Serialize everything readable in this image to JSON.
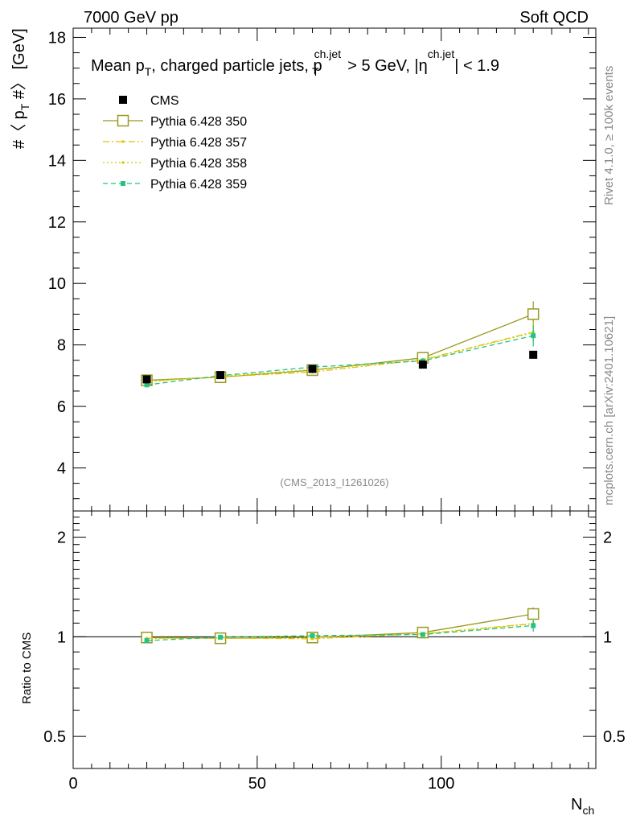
{
  "header": {
    "left": "7000 GeV pp",
    "right": "Soft QCD"
  },
  "side_text": {
    "rivet": "Rivet 4.1.0, ≥ 100k events",
    "mcplots": "mcplots.cern.ch [arXiv:2401.10621]"
  },
  "watermark": "(CMS_2013_I1261026)",
  "chart_data": {
    "type": "line",
    "title": {
      "main": "Mean p",
      "sub_T": "T",
      "part2": ", charged particle jets, p",
      "sup_chjet": "ch.jet",
      "part3": " > 5 GeV,  |η",
      "part4": "| < 1.9"
    },
    "ylabel": {
      "prefix": "#〈 p",
      "sub": "T",
      "suffix": " #〉 [GeV]"
    },
    "ratio_ylabel": "Ratio to CMS",
    "xlabel": {
      "main": "N",
      "sub": "ch"
    },
    "xlim": [
      0,
      142
    ],
    "ylim": [
      2.6,
      18.3
    ],
    "ratio_ylim": [
      0.4,
      2.4
    ],
    "x_ticks": [
      "0",
      "50",
      "100"
    ],
    "y_ticks": [
      "4",
      "6",
      "8",
      "10",
      "12",
      "14",
      "16",
      "18"
    ],
    "ratio_ticks": [
      "0.5",
      "1",
      "2"
    ],
    "legend_position": "top-left",
    "data": {
      "name": "CMS",
      "color": "#000000",
      "x": [
        20,
        40,
        65,
        95,
        125
      ],
      "y": [
        6.88,
        7.02,
        7.22,
        7.36,
        7.68
      ]
    },
    "series": [
      {
        "name": "Pythia 6.428 350",
        "color": "#999922",
        "dash": "solid",
        "marker": "open-square",
        "x": [
          20,
          40,
          65,
          95,
          125
        ],
        "y": [
          6.85,
          6.95,
          7.18,
          7.58,
          9.0
        ],
        "err": [
          0.04,
          0.04,
          0.05,
          0.06,
          0.42
        ],
        "ratio": [
          0.995,
          0.99,
          0.995,
          1.03,
          1.172
        ],
        "ratio_err": [
          0.006,
          0.006,
          0.007,
          0.008,
          0.055
        ]
      },
      {
        "name": "Pythia 6.428 357",
        "color": "#e6c000",
        "dash": "dashdot",
        "marker": "small-dot",
        "x": [
          20,
          40,
          65,
          95,
          125
        ],
        "y": [
          6.82,
          6.96,
          7.12,
          7.52,
          8.42
        ],
        "err": [
          0.04,
          0.04,
          0.05,
          0.06,
          0.3
        ],
        "ratio": [
          0.991,
          0.991,
          0.986,
          1.022,
          1.096
        ],
        "ratio_err": [
          0.006,
          0.006,
          0.007,
          0.008,
          0.04
        ]
      },
      {
        "name": "Pythia 6.428 358",
        "color": "#cccc00",
        "dash": "dotted",
        "marker": "small-dot",
        "x": [
          20,
          40,
          65,
          95,
          125
        ],
        "y": [
          6.8,
          6.98,
          7.2,
          7.5,
          8.4
        ],
        "err": [
          0.04,
          0.04,
          0.05,
          0.06,
          0.3
        ],
        "ratio": [
          0.988,
          0.994,
          0.997,
          1.019,
          1.094
        ],
        "ratio_err": [
          0.006,
          0.006,
          0.007,
          0.008,
          0.04
        ]
      },
      {
        "name": "Pythia 6.428 359",
        "color": "#22c383",
        "dash": "dashed",
        "marker": "filled-square",
        "x": [
          20,
          40,
          65,
          95,
          125
        ],
        "y": [
          6.7,
          7.0,
          7.28,
          7.48,
          8.3
        ],
        "err": [
          0.04,
          0.04,
          0.05,
          0.06,
          0.35
        ],
        "ratio": [
          0.974,
          0.997,
          1.008,
          1.016,
          1.081
        ],
        "ratio_err": [
          0.006,
          0.006,
          0.007,
          0.008,
          0.045
        ]
      }
    ]
  }
}
